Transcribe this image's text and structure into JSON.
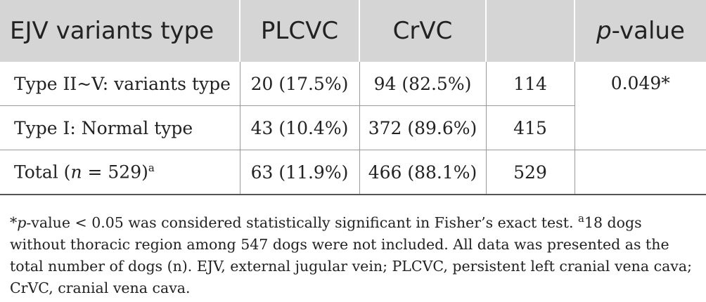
{
  "table": {
    "headers": {
      "col1": "EJV variants type",
      "col2": "PLCVC",
      "col3": "CrVC",
      "col4": "",
      "col5_italic": "p",
      "col5_rest": "-value"
    },
    "rows": [
      {
        "label": "Type II~V: variants type",
        "plcvc": "20 (17.5%)",
        "crvc": "94 (82.5%)",
        "total": "114"
      },
      {
        "label": "Type I: Normal type",
        "plcvc": "43 (10.4%)",
        "crvc": "372 (89.6%)",
        "total": "415"
      },
      {
        "label_pre": "Total (",
        "label_n": "n",
        "label_post": " = 529)",
        "label_sup": "a",
        "plcvc": "63 (11.9%)",
        "crvc": "466 (88.1%)",
        "total": "529"
      }
    ],
    "pvalue": "0.049*"
  },
  "footnote": {
    "star": "*",
    "p": "p",
    "text1": "-value < 0.05 was considered statistically significant in Fisher’s exact test. ",
    "sup_a": "a",
    "text2": "18 dogs without thoracic region among 547 dogs were not included. All data was presented as the total number of dogs (n). EJV, external jugular vein; PLCVC, persistent left cranial vena cava; CrVC, cranial vena cava."
  }
}
